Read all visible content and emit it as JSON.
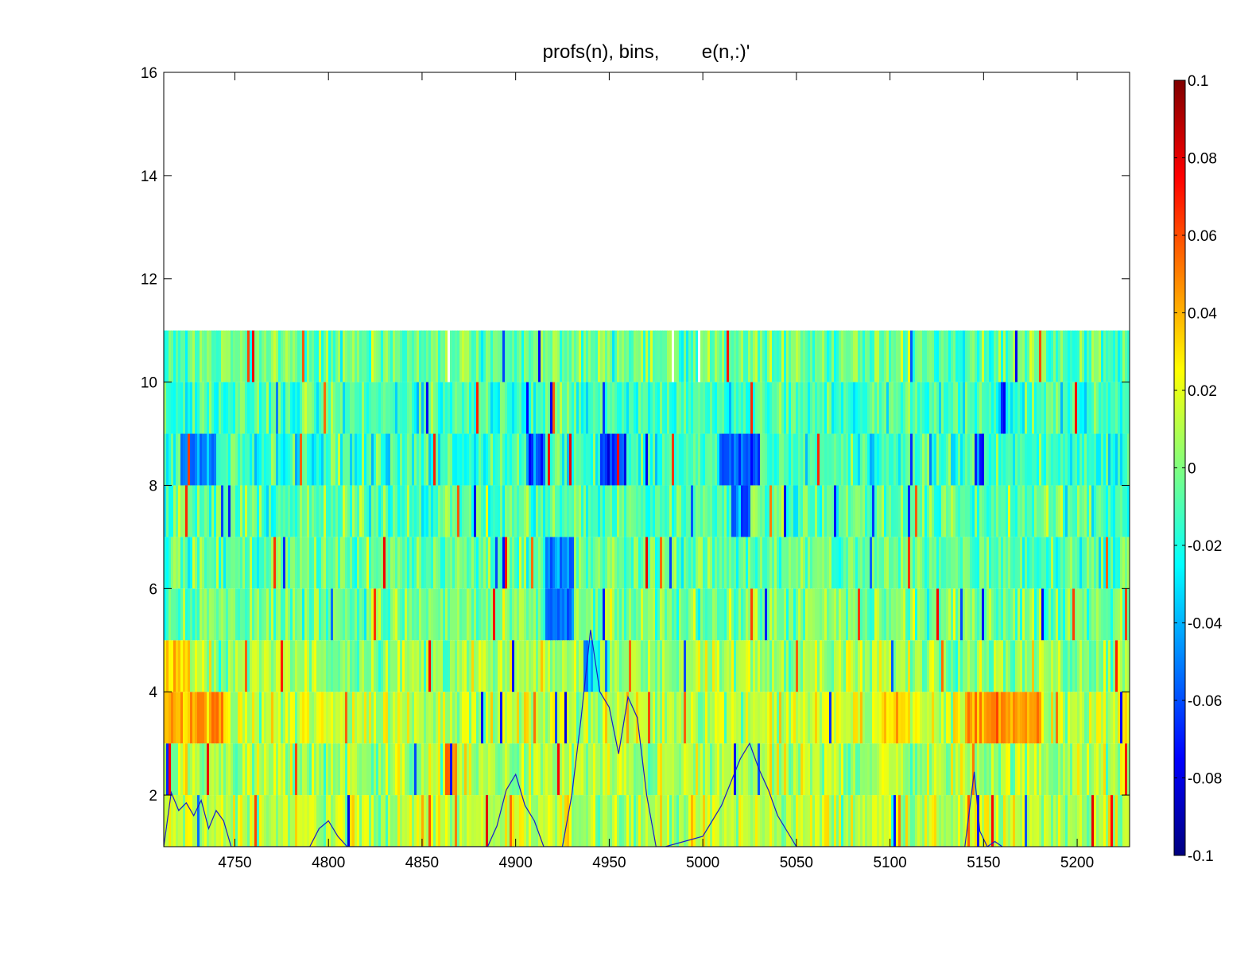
{
  "chart_data": {
    "type": "heatmap",
    "title": "profs(n), bins,        e(n,:)'",
    "xlabel": "",
    "ylabel": "",
    "xlim": [
      4712,
      5228
    ],
    "ylim": [
      1,
      16
    ],
    "x_ticks": [
      4750,
      4800,
      4850,
      4900,
      4950,
      5000,
      5050,
      5100,
      5150,
      5200
    ],
    "y_ticks": [
      2,
      4,
      6,
      8,
      10,
      12,
      14,
      16
    ],
    "bins": [
      1,
      2,
      3,
      4,
      5,
      6,
      7,
      8,
      9,
      10
    ],
    "colormap": "jet",
    "clim": [
      -0.1,
      0.1
    ],
    "colorbar": {
      "location": "right",
      "ticks": [
        0.1,
        0.08,
        0.06,
        0.04,
        0.02,
        0,
        -0.02,
        -0.04,
        -0.06,
        -0.08,
        -0.1
      ],
      "tick_labels": [
        "0.1",
        "0.08",
        "0.06",
        "0.04",
        "0.02",
        "0",
        "-0.02",
        "-0.04",
        "-0.06",
        "-0.08",
        "-0.1"
      ]
    },
    "row_bias": [
      {
        "bin": 1,
        "mean": 0.012
      },
      {
        "bin": 2,
        "mean": 0.008
      },
      {
        "bin": 3,
        "mean": 0.014
      },
      {
        "bin": 4,
        "mean": 0.006
      },
      {
        "bin": 5,
        "mean": -0.002
      },
      {
        "bin": 6,
        "mean": -0.006
      },
      {
        "bin": 7,
        "mean": -0.008
      },
      {
        "bin": 8,
        "mean": -0.014
      },
      {
        "bin": 9,
        "mean": -0.012
      },
      {
        "bin": 10,
        "mean": -0.004
      }
    ],
    "dark_regions": [
      {
        "bin": 8,
        "x_from": 4720,
        "x_to": 4740,
        "value": -0.05
      },
      {
        "bin": 8,
        "x_from": 4905,
        "x_to": 4915,
        "value": -0.06
      },
      {
        "bin": 8,
        "x_from": 4945,
        "x_to": 4958,
        "value": -0.07
      },
      {
        "bin": 8,
        "x_from": 5008,
        "x_to": 5030,
        "value": -0.06
      },
      {
        "bin": 8,
        "x_from": 5145,
        "x_to": 5150,
        "value": -0.06
      },
      {
        "bin": 7,
        "x_from": 5015,
        "x_to": 5025,
        "value": -0.05
      },
      {
        "bin": 6,
        "x_from": 4915,
        "x_to": 4930,
        "value": -0.05
      },
      {
        "bin": 5,
        "x_from": 4915,
        "x_to": 4930,
        "value": -0.05
      },
      {
        "bin": 4,
        "x_from": 4935,
        "x_to": 4945,
        "value": -0.03
      }
    ],
    "warm_regions": [
      {
        "bin": 3,
        "x_from": 4712,
        "x_to": 4745,
        "value": 0.04
      },
      {
        "bin": 3,
        "x_from": 5095,
        "x_to": 5110,
        "value": 0.035
      },
      {
        "bin": 3,
        "x_from": 5140,
        "x_to": 5180,
        "value": 0.045
      },
      {
        "bin": 2,
        "x_from": 4862,
        "x_to": 4868,
        "value": 0.05
      },
      {
        "bin": 4,
        "x_from": 4712,
        "x_to": 4725,
        "value": 0.035
      }
    ],
    "series": [
      {
        "type": "line",
        "color": "#1a1acc",
        "x": [
          4712,
          4716,
          4720,
          4724,
          4728,
          4732,
          4736,
          4740,
          4744,
          4748,
          4752,
          4756,
          4760,
          4790,
          4795,
          4800,
          4805,
          4810,
          4885,
          4890,
          4895,
          4900,
          4905,
          4910,
          4915,
          4920,
          4925,
          4930,
          4935,
          4940,
          4945,
          4950,
          4955,
          4960,
          4965,
          4970,
          4975,
          4980,
          5000,
          5010,
          5020,
          5025,
          5030,
          5035,
          5040,
          5045,
          5050,
          5055,
          5140,
          5145,
          5148,
          5152,
          5156,
          5160
        ],
        "y": [
          1.0,
          2.05,
          1.7,
          1.85,
          1.6,
          1.9,
          1.35,
          1.7,
          1.5,
          1.0,
          1.0,
          1.0,
          1.0,
          1.0,
          1.35,
          1.5,
          1.2,
          1.0,
          1.0,
          1.4,
          2.1,
          2.4,
          1.8,
          1.5,
          1.0,
          1.0,
          1.0,
          2.0,
          3.5,
          5.2,
          4.0,
          3.7,
          2.8,
          3.9,
          3.5,
          2.0,
          1.0,
          1.0,
          1.2,
          1.8,
          2.7,
          3.0,
          2.5,
          2.1,
          1.6,
          1.3,
          1.0,
          1.0,
          1.0,
          2.45,
          1.3,
          1.0,
          1.1,
          1.0
        ]
      }
    ],
    "grid": false,
    "legend": "none"
  }
}
